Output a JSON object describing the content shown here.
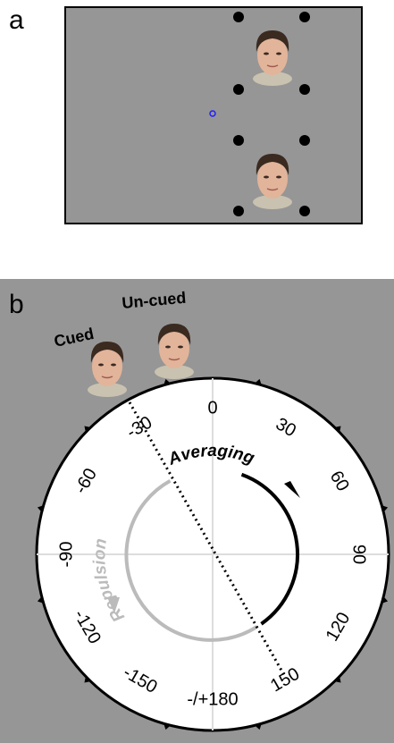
{
  "panel_a": {
    "label": "a"
  },
  "panel_b": {
    "label": "b",
    "face_labels": [
      "Cued",
      "Un-cued"
    ],
    "angle_ticks": [
      0,
      30,
      60,
      90,
      120,
      150,
      {
        "value": 180,
        "label": "-/+180"
      },
      -150,
      -120,
      -90,
      -60,
      -30
    ],
    "arc_labels": {
      "averaging": "Averaging",
      "repulsion": "Repulsion"
    }
  }
}
